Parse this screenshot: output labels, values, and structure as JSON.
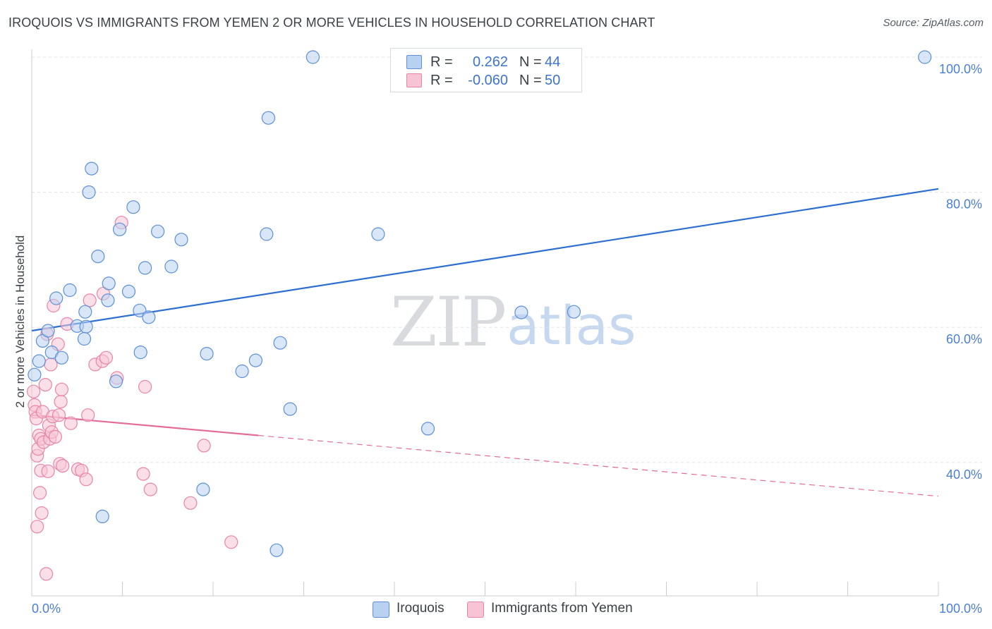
{
  "title": "IROQUOIS VS IMMIGRANTS FROM YEMEN 2 OR MORE VEHICLES IN HOUSEHOLD CORRELATION CHART",
  "source": "Source: ZipAtlas.com",
  "watermark": {
    "zip": "ZIP",
    "atlas": "atlas"
  },
  "colors": {
    "blue": "#5b8fd6",
    "blue_fill": "#b9d1f1",
    "blue_line": "#2c6fd1",
    "pink": "#e884a6",
    "pink_fill": "#f7c4d5",
    "pink_line": "#e36b98",
    "axis_text": "#4a7fd0",
    "grid": "#dde1e6"
  },
  "legend": {
    "rows": [
      {
        "r_label": "R =",
        "r_value": "0.262",
        "n_label": "N =",
        "n_value": "44",
        "color": "#b9d1f1",
        "border": "#5b8fd6"
      },
      {
        "r_label": "R =",
        "r_value": "-0.060",
        "n_label": "N =",
        "n_value": "50",
        "color": "#f7c4d5",
        "border": "#e884a6"
      }
    ]
  },
  "bottom_legend": [
    {
      "label": "Iroquois",
      "color": "#b9d1f1",
      "border": "#5b8fd6"
    },
    {
      "label": "Immigrants from Yemen",
      "color": "#f7c4d5",
      "border": "#e884a6"
    }
  ],
  "chart_data": {
    "type": "scatter",
    "title": "IROQUOIS VS IMMIGRANTS FROM YEMEN 2 OR MORE VEHICLES IN HOUSEHOLD CORRELATION CHART",
    "xlabel": "",
    "ylabel": "2 or more Vehicles in Household",
    "xlim": [
      0,
      100
    ],
    "ylim": [
      21,
      102
    ],
    "x_tick_labels": [
      {
        "value": 0,
        "label": "0.0%"
      },
      {
        "value": 100,
        "label": "100.0%"
      }
    ],
    "y_tick_labels": [
      {
        "value": 100,
        "label": "100.0%"
      },
      {
        "value": 80,
        "label": "80.0%"
      },
      {
        "value": 60,
        "label": "60.0%"
      },
      {
        "value": 40,
        "label": "40.0%"
      }
    ],
    "series": [
      {
        "name": "Iroquois",
        "r": 0.262,
        "n": 44,
        "trend": {
          "x": [
            0,
            100
          ],
          "y": [
            59.5,
            80.5
          ],
          "dashed_from": null
        },
        "points": [
          [
            0.3,
            53.0
          ],
          [
            0.8,
            55.0
          ],
          [
            1.2,
            58.0
          ],
          [
            1.8,
            59.5
          ],
          [
            2.2,
            56.3
          ],
          [
            2.7,
            64.3
          ],
          [
            3.3,
            55.5
          ],
          [
            4.2,
            65.5
          ],
          [
            5.0,
            60.2
          ],
          [
            6.0,
            60.1
          ],
          [
            5.8,
            58.3
          ],
          [
            5.9,
            62.3
          ],
          [
            6.3,
            80.0
          ],
          [
            6.6,
            83.5
          ],
          [
            7.3,
            70.5
          ],
          [
            7.8,
            32.0
          ],
          [
            8.5,
            66.5
          ],
          [
            8.4,
            64.0
          ],
          [
            9.3,
            52.0
          ],
          [
            9.7,
            74.5
          ],
          [
            10.7,
            65.3
          ],
          [
            11.2,
            77.8
          ],
          [
            11.9,
            62.5
          ],
          [
            12.0,
            56.3
          ],
          [
            12.5,
            68.8
          ],
          [
            12.9,
            61.5
          ],
          [
            13.9,
            74.2
          ],
          [
            15.4,
            69.0
          ],
          [
            16.5,
            73.0
          ],
          [
            18.9,
            36.0
          ],
          [
            19.3,
            56.1
          ],
          [
            23.2,
            53.5
          ],
          [
            24.7,
            55.1
          ],
          [
            25.9,
            73.8
          ],
          [
            26.1,
            91.0
          ],
          [
            27.0,
            27.0
          ],
          [
            27.4,
            57.7
          ],
          [
            28.5,
            47.9
          ],
          [
            31.0,
            100.0
          ],
          [
            38.2,
            73.8
          ],
          [
            43.7,
            45.0
          ],
          [
            54.0,
            62.2
          ],
          [
            59.8,
            62.3
          ],
          [
            98.5,
            100.0
          ]
        ]
      },
      {
        "name": "Immigrants from Yemen",
        "r": -0.06,
        "n": 50,
        "trend": {
          "x": [
            0,
            100
          ],
          "y": [
            47.0,
            35.0
          ],
          "dashed_from": 25.0
        },
        "points": [
          [
            0.2,
            50.5
          ],
          [
            0.3,
            48.5
          ],
          [
            0.4,
            47.5
          ],
          [
            0.5,
            46.5
          ],
          [
            0.6,
            30.5
          ],
          [
            0.6,
            41.0
          ],
          [
            0.7,
            42.0
          ],
          [
            0.8,
            44.0
          ],
          [
            0.9,
            35.5
          ],
          [
            1.0,
            38.8
          ],
          [
            1.0,
            43.5
          ],
          [
            1.1,
            32.5
          ],
          [
            1.2,
            47.5
          ],
          [
            1.3,
            43.0
          ],
          [
            1.5,
            51.5
          ],
          [
            1.6,
            23.5
          ],
          [
            1.7,
            59.0
          ],
          [
            1.8,
            38.7
          ],
          [
            1.9,
            45.5
          ],
          [
            2.0,
            43.5
          ],
          [
            2.1,
            54.5
          ],
          [
            2.2,
            44.5
          ],
          [
            2.3,
            46.8
          ],
          [
            2.4,
            63.2
          ],
          [
            2.6,
            43.8
          ],
          [
            2.9,
            57.5
          ],
          [
            3.0,
            47.0
          ],
          [
            3.1,
            39.8
          ],
          [
            3.2,
            49.0
          ],
          [
            3.3,
            50.8
          ],
          [
            3.4,
            39.5
          ],
          [
            3.9,
            60.5
          ],
          [
            4.3,
            45.8
          ],
          [
            5.1,
            39.0
          ],
          [
            5.5,
            38.8
          ],
          [
            6.0,
            37.5
          ],
          [
            6.2,
            47.0
          ],
          [
            6.4,
            64.0
          ],
          [
            7.0,
            54.5
          ],
          [
            7.8,
            55.0
          ],
          [
            7.9,
            65.0
          ],
          [
            8.2,
            55.5
          ],
          [
            9.4,
            52.5
          ],
          [
            9.9,
            75.5
          ],
          [
            12.3,
            38.3
          ],
          [
            12.5,
            51.2
          ],
          [
            13.1,
            36.0
          ],
          [
            17.5,
            34.0
          ],
          [
            19.0,
            42.5
          ],
          [
            22.0,
            28.2
          ]
        ]
      }
    ]
  }
}
